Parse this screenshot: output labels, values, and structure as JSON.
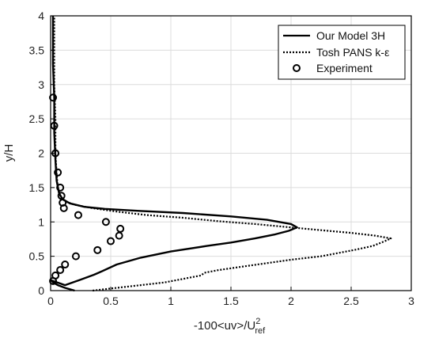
{
  "chart_data": {
    "type": "line",
    "xlabel_main": "-100<uv>/U",
    "xlabel_sup": "2",
    "xlabel_sub": "ref",
    "ylabel": "y/H",
    "xlim": [
      0,
      3
    ],
    "ylim": [
      0,
      4
    ],
    "xticks": [
      0,
      0.5,
      1,
      1.5,
      2,
      2.5,
      3
    ],
    "yticks": [
      0,
      0.5,
      1,
      1.5,
      2,
      2.5,
      3,
      3.5,
      4
    ],
    "xtick_labels": [
      "0",
      "0.5",
      "1",
      "1.5",
      "2",
      "2.5",
      "3"
    ],
    "ytick_labels": [
      "0",
      "0.5",
      "1",
      "1.5",
      "2",
      "2.5",
      "3",
      "3.5",
      "4"
    ],
    "grid": true,
    "legend_position": "top-right",
    "colors": {
      "line": "#000000",
      "grid": "#dcdcdc",
      "axis": "#000000"
    },
    "series": [
      {
        "name": "Our Model 3H",
        "style": "solid",
        "points": [
          [
            0.2,
            0.0
          ],
          [
            0.12,
            0.04
          ],
          [
            0.06,
            0.08
          ],
          [
            0.02,
            0.12
          ],
          [
            0.005,
            0.15
          ],
          [
            0.12,
            0.08
          ],
          [
            0.25,
            0.16
          ],
          [
            0.36,
            0.23
          ],
          [
            0.4,
            0.26
          ],
          [
            0.55,
            0.38
          ],
          [
            0.75,
            0.48
          ],
          [
            1.0,
            0.57
          ],
          [
            1.3,
            0.65
          ],
          [
            1.5,
            0.7
          ],
          [
            1.7,
            0.76
          ],
          [
            1.87,
            0.82
          ],
          [
            1.98,
            0.87
          ],
          [
            2.05,
            0.92
          ],
          [
            2.0,
            0.97
          ],
          [
            1.8,
            1.03
          ],
          [
            1.5,
            1.08
          ],
          [
            1.1,
            1.13
          ],
          [
            0.75,
            1.16
          ],
          [
            0.45,
            1.19
          ],
          [
            0.28,
            1.22
          ],
          [
            0.16,
            1.27
          ],
          [
            0.1,
            1.33
          ],
          [
            0.07,
            1.42
          ],
          [
            0.05,
            1.6
          ],
          [
            0.04,
            1.9
          ],
          [
            0.03,
            2.3
          ],
          [
            0.03,
            2.8
          ],
          [
            0.02,
            3.3
          ],
          [
            0.02,
            3.8
          ],
          [
            0.02,
            4.0
          ]
        ]
      },
      {
        "name": "Tosh PANS k-ε",
        "style": "dotted",
        "points": [
          [
            0.35,
            0.0
          ],
          [
            0.55,
            0.04
          ],
          [
            0.75,
            0.08
          ],
          [
            0.95,
            0.12
          ],
          [
            1.1,
            0.17
          ],
          [
            1.25,
            0.22
          ],
          [
            1.28,
            0.26
          ],
          [
            1.4,
            0.3
          ],
          [
            1.6,
            0.35
          ],
          [
            1.8,
            0.4
          ],
          [
            2.0,
            0.45
          ],
          [
            2.25,
            0.5
          ],
          [
            2.4,
            0.55
          ],
          [
            2.55,
            0.6
          ],
          [
            2.68,
            0.65
          ],
          [
            2.78,
            0.72
          ],
          [
            2.83,
            0.76
          ],
          [
            2.7,
            0.8
          ],
          [
            2.5,
            0.84
          ],
          [
            2.25,
            0.88
          ],
          [
            2.0,
            0.92
          ],
          [
            1.7,
            0.97
          ],
          [
            1.4,
            1.01
          ],
          [
            1.1,
            1.06
          ],
          [
            0.8,
            1.1
          ],
          [
            0.55,
            1.15
          ],
          [
            0.35,
            1.2
          ],
          [
            0.2,
            1.25
          ],
          [
            0.12,
            1.3
          ],
          [
            0.08,
            1.38
          ],
          [
            0.06,
            1.5
          ],
          [
            0.05,
            1.7
          ],
          [
            0.04,
            2.0
          ],
          [
            0.04,
            2.5
          ],
          [
            0.03,
            3.0
          ],
          [
            0.03,
            3.5
          ],
          [
            0.03,
            4.0
          ]
        ]
      },
      {
        "name": "Experiment",
        "style": "markers",
        "points": [
          [
            0.02,
            2.81
          ],
          [
            0.03,
            2.4
          ],
          [
            0.04,
            2.0
          ],
          [
            0.06,
            1.72
          ],
          [
            0.08,
            1.5
          ],
          [
            0.09,
            1.38
          ],
          [
            0.1,
            1.28
          ],
          [
            0.11,
            1.2
          ],
          [
            0.23,
            1.1
          ],
          [
            0.46,
            1.0
          ],
          [
            0.58,
            0.9
          ],
          [
            0.57,
            0.8
          ],
          [
            0.5,
            0.72
          ],
          [
            0.39,
            0.59
          ],
          [
            0.21,
            0.5
          ],
          [
            0.12,
            0.38
          ],
          [
            0.08,
            0.3
          ],
          [
            0.04,
            0.22
          ],
          [
            0.02,
            0.14
          ]
        ]
      }
    ]
  }
}
